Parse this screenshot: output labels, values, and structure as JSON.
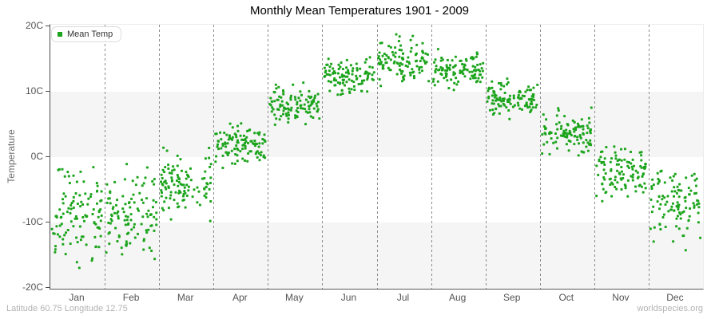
{
  "title": "Monthly Mean Temperatures 1901 - 2009",
  "legend": {
    "items": [
      {
        "label": "Mean Temp",
        "marker": "green-square"
      }
    ]
  },
  "y_axis": {
    "title": "Temperature",
    "tick_labels": [
      "20C",
      "10C",
      "0C",
      "-10C",
      "-20C"
    ],
    "tick_values": [
      20,
      10,
      0,
      -10,
      -20
    ]
  },
  "x_axis": {
    "tick_labels": [
      "Jan",
      "Feb",
      "Mar",
      "Apr",
      "May",
      "Jun",
      "Jul",
      "Aug",
      "Sep",
      "Oct",
      "Nov",
      "Dec"
    ]
  },
  "footer": {
    "left": "Latitude 60.75 Longitude 12.75",
    "right": "worldspecies.org"
  },
  "colors": {
    "point": "#1ca41c",
    "band": "#f5f5f5",
    "grid_dash": "#8a8a8a",
    "axis": "#4d4d4d",
    "border_light": "#ececec",
    "tick_text": "#545454",
    "title_text": "#000000",
    "footer_text": "#b3b3b3",
    "legend_border": "#dcdcdc"
  },
  "chart_data": {
    "type": "scatter",
    "title": "Monthly Mean Temperatures 1901 - 2009",
    "xlabel": "",
    "ylabel": "Temperature",
    "ylim": [
      -20,
      20
    ],
    "y_tick_step": 10,
    "x_categories": [
      "Jan",
      "Feb",
      "Mar",
      "Apr",
      "May",
      "Jun",
      "Jul",
      "Aug",
      "Sep",
      "Oct",
      "Nov",
      "Dec"
    ],
    "series": [
      {
        "name": "Mean Temp",
        "color": "#1ca41c",
        "marker": "square-3px"
      }
    ],
    "years_range": "1901-2009",
    "points_per_month": 109,
    "monthly_distributions": [
      {
        "month": "Jan",
        "mean": -8.3,
        "sd": 3.2,
        "min": -18.0,
        "max": -1.3
      },
      {
        "month": "Feb",
        "mean": -8.6,
        "sd": 3.4,
        "min": -17.8,
        "max": -0.7
      },
      {
        "month": "Mar",
        "mean": -4.3,
        "sd": 2.4,
        "min": -10.5,
        "max": 3.6
      },
      {
        "month": "Apr",
        "mean": 1.8,
        "sd": 1.5,
        "min": -2.0,
        "max": 5.4
      },
      {
        "month": "May",
        "mean": 8.0,
        "sd": 1.5,
        "min": 4.6,
        "max": 11.4
      },
      {
        "month": "Jun",
        "mean": 12.4,
        "sd": 1.4,
        "min": 9.2,
        "max": 15.8
      },
      {
        "month": "Jul",
        "mean": 14.4,
        "sd": 1.5,
        "min": 10.7,
        "max": 18.8
      },
      {
        "month": "Aug",
        "mean": 13.2,
        "sd": 1.4,
        "min": 10.0,
        "max": 17.5
      },
      {
        "month": "Sep",
        "mean": 8.8,
        "sd": 1.4,
        "min": 5.6,
        "max": 12.5
      },
      {
        "month": "Oct",
        "mean": 3.8,
        "sd": 1.6,
        "min": -0.5,
        "max": 7.7
      },
      {
        "month": "Nov",
        "mean": -2.2,
        "sd": 2.0,
        "min": -8.2,
        "max": 2.0
      },
      {
        "month": "Dec",
        "mean": -6.6,
        "sd": 2.9,
        "min": -16.3,
        "max": -1.3
      }
    ],
    "shaded_bands": [
      [
        10,
        0
      ],
      [
        -10,
        -20
      ]
    ],
    "legend_position": "top-left",
    "grid": "vertical-dashed-month-separators"
  }
}
